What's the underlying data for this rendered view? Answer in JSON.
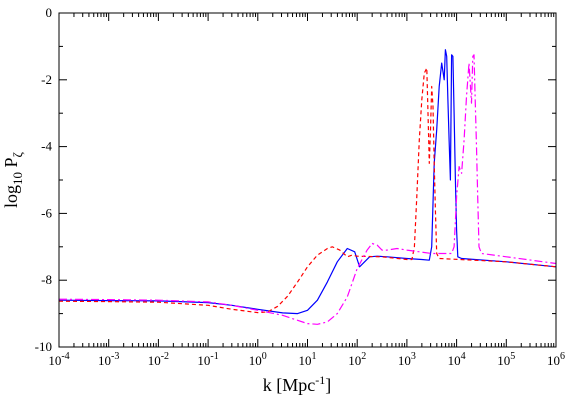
{
  "chart_data": {
    "type": "line",
    "title": "",
    "xlabel": "k [Mpc",
    "xlabel_sup": "-1",
    "xlabel_close": "]",
    "ylabel_main": "log",
    "ylabel_sub": "10",
    "ylabel_P": " P",
    "ylabel_P_sub": "ζ",
    "x_scale": "log10",
    "xlim": [
      0.0001,
      1000000
    ],
    "ylim": [
      -10,
      0
    ],
    "x_tick_exponents": [
      -4,
      -3,
      -2,
      -1,
      0,
      1,
      2,
      3,
      4,
      5,
      6
    ],
    "x_tick_base": "10",
    "y_ticks": [
      -10,
      -8,
      -6,
      -4,
      -2,
      0
    ],
    "grid": false,
    "legend": "none",
    "series": [
      {
        "color": "#0000ff",
        "dash": "solid",
        "points": [
          [
            0.0001,
            -8.6
          ],
          [
            0.001,
            -8.61
          ],
          [
            0.01,
            -8.62
          ],
          [
            0.1,
            -8.67
          ],
          [
            0.3,
            -8.75
          ],
          [
            1,
            -8.87
          ],
          [
            3.16,
            -8.98
          ],
          [
            6.31,
            -9.0
          ],
          [
            10,
            -8.9
          ],
          [
            15.8,
            -8.6
          ],
          [
            25.1,
            -8.05
          ],
          [
            39.8,
            -7.45
          ],
          [
            63.1,
            -7.05
          ],
          [
            89.1,
            -7.15
          ],
          [
            112,
            -7.6
          ],
          [
            141,
            -7.45
          ],
          [
            178,
            -7.3
          ],
          [
            251,
            -7.28
          ],
          [
            398,
            -7.3
          ],
          [
            1000,
            -7.35
          ],
          [
            1995,
            -7.38
          ],
          [
            2818,
            -7.4
          ],
          [
            3162,
            -7.0
          ],
          [
            3548,
            -4.5
          ],
          [
            3981,
            -3.5
          ],
          [
            4467,
            -2.2
          ],
          [
            5012,
            -1.5
          ],
          [
            5623,
            -2.0
          ],
          [
            5957,
            -1.1
          ],
          [
            6310,
            -1.3
          ],
          [
            6683,
            -2.6
          ],
          [
            7079,
            -3.8
          ],
          [
            7499,
            -5.0
          ],
          [
            7943,
            -1.25
          ],
          [
            8414,
            -1.3
          ],
          [
            8913,
            -3.0
          ],
          [
            9441,
            -5.0
          ],
          [
            10000,
            -6.5
          ],
          [
            10593,
            -7.3
          ],
          [
            12589,
            -7.35
          ],
          [
            100000,
            -7.45
          ],
          [
            1000000,
            -7.6
          ]
        ]
      },
      {
        "color": "#ff0000",
        "dash": "4,3",
        "points": [
          [
            0.0001,
            -8.63
          ],
          [
            0.001,
            -8.64
          ],
          [
            0.01,
            -8.66
          ],
          [
            0.1,
            -8.75
          ],
          [
            0.3,
            -8.87
          ],
          [
            1,
            -8.97
          ],
          [
            1.58,
            -8.95
          ],
          [
            2.51,
            -8.78
          ],
          [
            3.98,
            -8.48
          ],
          [
            6.31,
            -8.05
          ],
          [
            10,
            -7.6
          ],
          [
            15.8,
            -7.25
          ],
          [
            25.1,
            -7.05
          ],
          [
            31.6,
            -7.0
          ],
          [
            44.7,
            -7.1
          ],
          [
            63.1,
            -7.3
          ],
          [
            79.4,
            -7.25
          ],
          [
            100,
            -7.28
          ],
          [
            316,
            -7.3
          ],
          [
            1000,
            -7.38
          ],
          [
            1259,
            -7.38
          ],
          [
            1413,
            -7.0
          ],
          [
            1585,
            -5.5
          ],
          [
            1778,
            -3.8
          ],
          [
            1995,
            -2.6
          ],
          [
            2239,
            -1.8
          ],
          [
            2512,
            -1.65
          ],
          [
            2661,
            -3.0
          ],
          [
            2818,
            -4.5
          ],
          [
            2985,
            -3.5
          ],
          [
            3162,
            -2.2
          ],
          [
            3350,
            -2.8
          ],
          [
            3548,
            -4.5
          ],
          [
            3758,
            -6.0
          ],
          [
            3981,
            -7.2
          ],
          [
            4467,
            -7.35
          ],
          [
            100000,
            -7.45
          ],
          [
            1000000,
            -7.6
          ]
        ]
      },
      {
        "color": "#ff00ff",
        "dash": "8,3,2,3",
        "points": [
          [
            0.0001,
            -8.57
          ],
          [
            0.001,
            -8.58
          ],
          [
            0.01,
            -8.6
          ],
          [
            0.1,
            -8.65
          ],
          [
            0.3,
            -8.75
          ],
          [
            1,
            -8.9
          ],
          [
            3.16,
            -9.05
          ],
          [
            6.31,
            -9.2
          ],
          [
            10,
            -9.3
          ],
          [
            15.8,
            -9.32
          ],
          [
            25.1,
            -9.25
          ],
          [
            39.8,
            -9.0
          ],
          [
            63.1,
            -8.5
          ],
          [
            100,
            -7.65
          ],
          [
            158,
            -7.1
          ],
          [
            200,
            -6.9
          ],
          [
            251,
            -6.95
          ],
          [
            316,
            -7.1
          ],
          [
            398,
            -7.1
          ],
          [
            631,
            -7.05
          ],
          [
            1000,
            -7.1
          ],
          [
            3162,
            -7.2
          ],
          [
            7943,
            -7.2
          ],
          [
            8913,
            -7.0
          ],
          [
            10000,
            -5.5
          ],
          [
            11220,
            -4.6
          ],
          [
            12589,
            -4.8
          ],
          [
            14125,
            -3.8
          ],
          [
            15849,
            -2.5
          ],
          [
            17783,
            -1.5
          ],
          [
            19953,
            -2.7
          ],
          [
            21135,
            -1.3
          ],
          [
            22387,
            -1.25
          ],
          [
            23714,
            -2.6
          ],
          [
            25119,
            -4.0
          ],
          [
            26607,
            -5.5
          ],
          [
            28184,
            -7.0
          ],
          [
            31623,
            -7.2
          ],
          [
            100000,
            -7.3
          ],
          [
            1000000,
            -7.5
          ]
        ]
      }
    ]
  }
}
